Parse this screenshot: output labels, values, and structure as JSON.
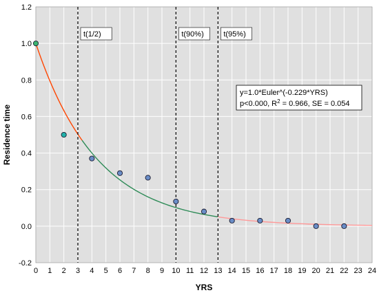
{
  "chart_data": {
    "type": "scatter",
    "xlabel": "YRS",
    "ylabel": "Residence time",
    "xlim": [
      0,
      24
    ],
    "ylim": [
      -0.2,
      1.2
    ],
    "x_ticks": [
      "0",
      "1",
      "2",
      "3",
      "4",
      "5",
      "6",
      "7",
      "8",
      "9",
      "10",
      "11",
      "12",
      "13",
      "14",
      "15",
      "16",
      "17",
      "18",
      "19",
      "20",
      "21",
      "22",
      "23",
      "24"
    ],
    "y_ticks": [
      "-0.2",
      "0.0",
      "0.2",
      "0.4",
      "0.6",
      "0.8",
      "1.0",
      "1.2"
    ],
    "grid": true,
    "background": "#e0e0e0",
    "points": [
      {
        "x": 0,
        "y": 1.0,
        "color": "#3cb371"
      },
      {
        "x": 2,
        "y": 0.5,
        "color": "#20b2aa"
      },
      {
        "x": 4,
        "y": 0.37,
        "color": "#6a8dc7"
      },
      {
        "x": 6,
        "y": 0.29,
        "color": "#6a8dc7"
      },
      {
        "x": 8,
        "y": 0.265,
        "color": "#6a8dc7"
      },
      {
        "x": 10,
        "y": 0.135,
        "color": "#6a8dc7"
      },
      {
        "x": 12,
        "y": 0.08,
        "color": "#6a8dc7"
      },
      {
        "x": 14,
        "y": 0.03,
        "color": "#6a8dc7"
      },
      {
        "x": 16,
        "y": 0.03,
        "color": "#6a8dc7"
      },
      {
        "x": 18,
        "y": 0.03,
        "color": "#6a8dc7"
      },
      {
        "x": 20,
        "y": 0.0,
        "color": "#6a8dc7"
      },
      {
        "x": 22,
        "y": 0.0,
        "color": "#6a8dc7"
      }
    ],
    "fit": {
      "a": 1.0,
      "b": -0.229,
      "colors": [
        "#ff4500",
        "#2e8b57",
        "#ff9999"
      ]
    },
    "vertical_lines": [
      {
        "x": 3.0,
        "label": "t(1/2)"
      },
      {
        "x": 10.0,
        "label": "t(90%)"
      },
      {
        "x": 13.0,
        "label": "t(95%)"
      }
    ],
    "equation": {
      "line1": "y=1.0*Euler^(-0.229*YRS)",
      "line2_prefix": "p<0.000,  R",
      "line2_sup": "2",
      "line2_suffix": " = 0.966, SE = 0.054"
    }
  }
}
